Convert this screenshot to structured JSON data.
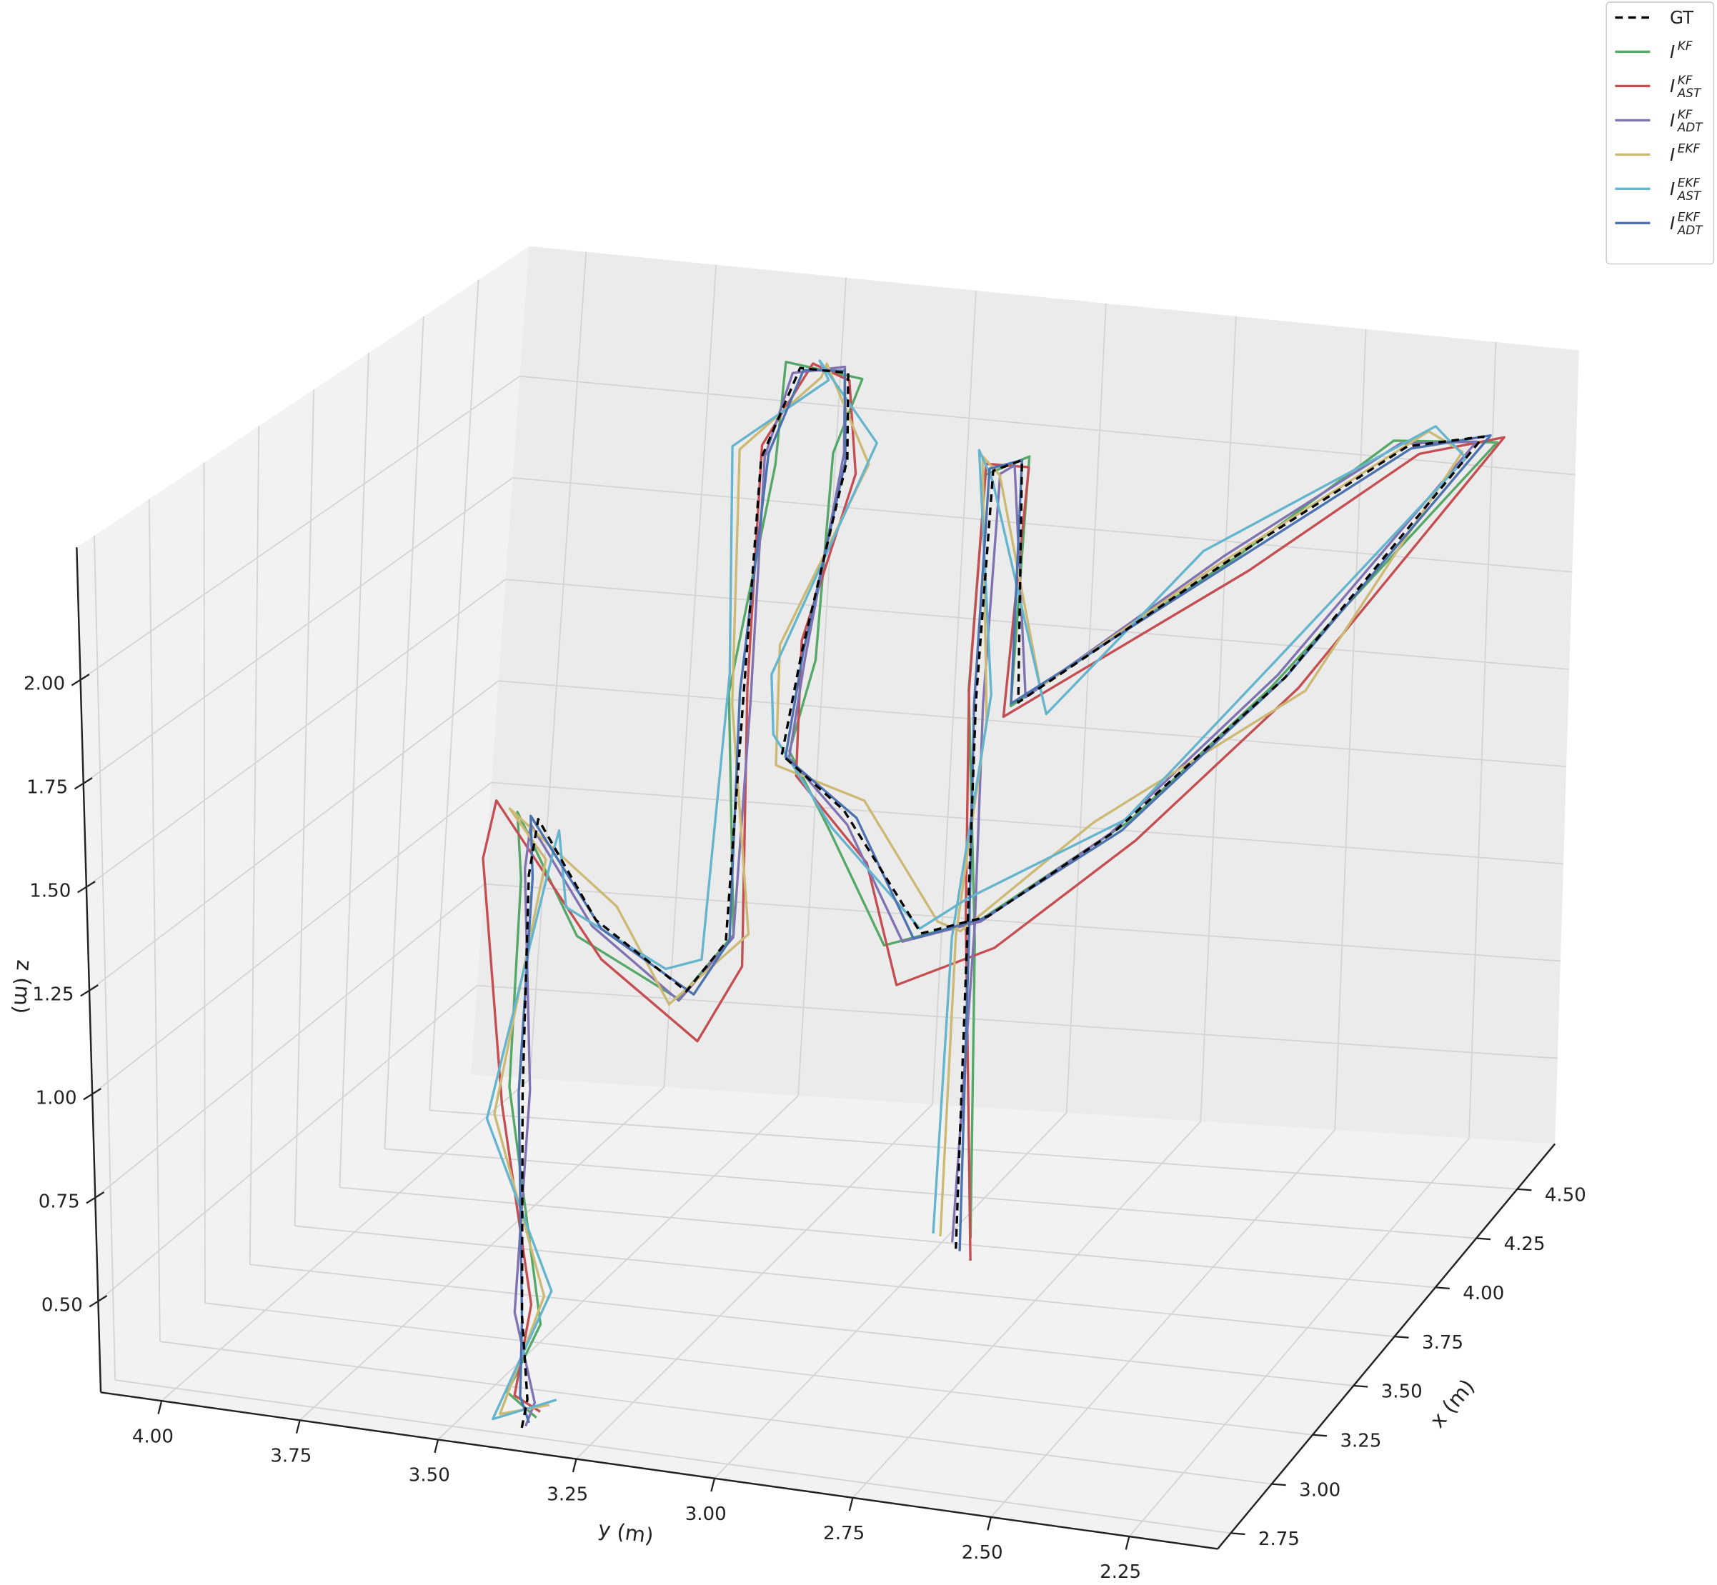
{
  "chart_data": {
    "type": "line3d",
    "xlabel": "x (m)",
    "ylabel": "y (m)",
    "zlabel": "z (m)",
    "xlim": [
      2.67,
      4.73
    ],
    "ylim": [
      4.11,
      2.09
    ],
    "zlim": [
      0.28,
      2.32
    ],
    "xticks": [
      2.75,
      {
        "value": 3.0,
        "label": "3.00"
      },
      3.25,
      {
        "value": 3.5,
        "label": "3.50"
      },
      3.75,
      {
        "value": 4.0,
        "label": "4.00"
      },
      4.25,
      {
        "value": 4.5,
        "label": "4.50"
      }
    ],
    "yticks": [
      {
        "value": 4.0,
        "label": "4.00"
      },
      3.75,
      {
        "value": 3.5,
        "label": "3.50"
      },
      3.25,
      {
        "value": 3.0,
        "label": "3.00"
      },
      2.75,
      {
        "value": 2.5,
        "label": "2.50"
      },
      2.25
    ],
    "zticks": [
      {
        "value": 0.5,
        "label": "0.50"
      },
      0.75,
      {
        "value": 1.0,
        "label": "1.00"
      },
      1.25,
      {
        "value": 1.5,
        "label": "1.50"
      },
      1.75,
      {
        "value": 2.0,
        "label": "2.00"
      }
    ],
    "grid": true,
    "legend": "upper right",
    "series": [
      {
        "name": "GT",
        "color": "#000000",
        "linestyle": "dashed",
        "x": [
          2.77,
          2.77,
          2.77,
          2.77,
          2.77,
          2.88,
          2.98,
          3.08,
          3.39,
          3.91,
          4.22,
          4.32,
          4.32,
          4.22,
          4.01,
          3.8,
          3.6,
          3.49,
          3.49,
          3.6,
          3.8,
          4.22,
          4.32,
          4.22,
          4.11,
          4.11,
          4.01,
          3.8,
          3.6,
          3.39
        ],
        "y": [
          3.38,
          3.37,
          3.38,
          3.38,
          3.37,
          3.39,
          3.32,
          3.19,
          3.22,
          3.37,
          3.46,
          3.43,
          3.34,
          3.3,
          3.3,
          3.26,
          3.08,
          2.9,
          2.78,
          2.59,
          2.35,
          2.12,
          2.29,
          2.58,
          2.93,
          2.94,
          2.96,
          2.91,
          2.85,
          2.79
        ],
        "z": [
          0.29,
          0.36,
          0.56,
          1.09,
          1.62,
          1.71,
          1.44,
          1.25,
          1.24,
          1.61,
          2.07,
          2.26,
          2.26,
          2.09,
          1.69,
          1.53,
          1.5,
          1.27,
          1.33,
          1.52,
          1.85,
          2.31,
          2.22,
          1.94,
          1.58,
          2.18,
          2.19,
          1.71,
          1.24,
          0.56
        ]
      },
      {
        "name": "I",
        "name_sup": "KF",
        "color": "#55a868",
        "linestyle": "solid",
        "x": [
          2.79,
          2.75,
          2.78,
          2.76,
          2.79,
          2.86,
          2.97,
          3.1,
          3.37,
          3.89,
          4.24,
          4.3,
          4.34,
          4.2,
          4.03,
          3.78,
          3.58,
          3.47,
          3.51,
          3.62,
          3.78,
          4.24,
          4.3,
          4.2,
          4.13,
          4.09,
          4.03,
          3.82,
          3.58,
          3.41
        ],
        "y": [
          3.36,
          3.4,
          3.35,
          3.4,
          3.39,
          3.42,
          3.35,
          3.21,
          3.2,
          3.39,
          3.44,
          3.45,
          3.32,
          3.32,
          3.28,
          3.24,
          3.1,
          2.96,
          2.8,
          2.57,
          2.37,
          2.1,
          2.31,
          2.56,
          2.95,
          2.92,
          2.98,
          2.93,
          2.83,
          2.77
        ],
        "z": [
          0.31,
          0.38,
          0.54,
          1.11,
          1.6,
          1.73,
          1.4,
          1.22,
          1.27,
          1.63,
          2.05,
          2.28,
          2.24,
          2.11,
          1.67,
          1.55,
          1.46,
          1.24,
          1.31,
          1.54,
          1.83,
          2.29,
          2.24,
          1.96,
          1.56,
          2.2,
          2.17,
          1.73,
          1.22,
          0.58
        ]
      },
      {
        "name": "I",
        "name_sup": "KF",
        "name_sub": "AST",
        "color": "#c44e52",
        "linestyle": "solid",
        "x": [
          2.78,
          2.76,
          2.79,
          2.75,
          2.74,
          2.84,
          2.95,
          3.02,
          3.36,
          3.9,
          4.25,
          4.33,
          4.3,
          4.21,
          4.04,
          3.76,
          3.55,
          3.42,
          3.5,
          3.63,
          3.82,
          4.25,
          4.33,
          4.23,
          4.09,
          4.12,
          4.0,
          3.79,
          3.62,
          3.38
        ],
        "y": [
          3.35,
          3.39,
          3.37,
          3.41,
          3.44,
          3.45,
          3.3,
          3.15,
          3.18,
          3.36,
          3.47,
          3.41,
          3.33,
          3.28,
          3.31,
          3.22,
          3.02,
          2.92,
          2.77,
          2.56,
          2.33,
          2.09,
          2.27,
          2.55,
          2.95,
          2.93,
          2.97,
          2.92,
          2.86,
          2.76
        ],
        "z": [
          0.33,
          0.37,
          0.58,
          1.07,
          1.66,
          1.76,
          1.36,
          1.16,
          1.2,
          1.64,
          2.09,
          2.27,
          2.25,
          2.06,
          1.71,
          1.5,
          1.4,
          1.17,
          1.25,
          1.49,
          1.82,
          2.3,
          2.2,
          1.91,
          1.55,
          2.16,
          2.21,
          1.74,
          1.27,
          0.54
        ]
      },
      {
        "name": "I",
        "name_sup": "KF",
        "name_sub": "ADT",
        "color": "#8172b2",
        "linestyle": "solid",
        "x": [
          2.76,
          2.78,
          2.76,
          2.78,
          2.78,
          2.87,
          2.99,
          3.07,
          3.4,
          3.92,
          4.21,
          4.31,
          4.33,
          4.23,
          4.0,
          3.81,
          3.59,
          3.48,
          3.48,
          3.61,
          3.79,
          4.21,
          4.31,
          4.21,
          4.12,
          4.1,
          4.02,
          3.81,
          3.61,
          3.4
        ],
        "y": [
          3.37,
          3.36,
          3.39,
          3.37,
          3.38,
          3.4,
          3.33,
          3.2,
          3.21,
          3.36,
          3.45,
          3.44,
          3.35,
          3.31,
          3.29,
          3.25,
          3.07,
          2.93,
          2.79,
          2.6,
          2.36,
          2.13,
          2.3,
          2.59,
          2.92,
          2.95,
          2.95,
          2.9,
          2.84,
          2.8
        ],
        "z": [
          0.3,
          0.35,
          0.57,
          1.1,
          1.63,
          1.7,
          1.42,
          1.23,
          1.25,
          1.6,
          2.08,
          2.25,
          2.27,
          2.1,
          1.68,
          1.52,
          1.47,
          1.25,
          1.32,
          1.51,
          1.86,
          2.3,
          2.23,
          1.95,
          1.59,
          2.17,
          2.18,
          1.7,
          1.25,
          0.57
        ]
      },
      {
        "name": "I",
        "name_sup": "EKF",
        "color": "#ccb974",
        "linestyle": "solid",
        "x": [
          2.8,
          2.74,
          2.8,
          2.74,
          2.8,
          2.85,
          3.0,
          3.11,
          3.36,
          3.94,
          4.19,
          4.35,
          4.29,
          4.25,
          3.98,
          3.83,
          3.62,
          3.52,
          3.46,
          3.57,
          3.83,
          4.19,
          4.35,
          4.19,
          4.14,
          4.08,
          4.04,
          3.77,
          3.63,
          3.36
        ],
        "y": [
          3.34,
          3.41,
          3.35,
          3.42,
          3.35,
          3.43,
          3.29,
          3.23,
          3.17,
          3.4,
          3.49,
          3.4,
          3.37,
          3.27,
          3.33,
          3.28,
          3.05,
          2.88,
          2.82,
          2.62,
          2.32,
          2.15,
          2.26,
          2.61,
          2.9,
          2.97,
          2.99,
          2.88,
          2.88,
          2.81
        ],
        "z": [
          0.34,
          0.33,
          0.6,
          1.05,
          1.65,
          1.74,
          1.47,
          1.2,
          1.28,
          1.58,
          2.1,
          2.23,
          2.29,
          2.07,
          1.72,
          1.49,
          1.52,
          1.29,
          1.3,
          1.55,
          1.81,
          2.28,
          2.25,
          1.92,
          1.61,
          2.15,
          2.21,
          1.68,
          1.21,
          0.6
        ]
      },
      {
        "name": "I",
        "name_sup": "EKF",
        "name_sub": "AST",
        "color": "#64b5cd",
        "linestyle": "solid",
        "x": [
          2.81,
          2.73,
          2.81,
          2.73,
          2.81,
          2.9,
          2.94,
          3.12,
          3.35,
          3.95,
          4.18,
          4.36,
          4.28,
          4.26,
          3.97,
          3.84,
          3.63,
          3.45,
          3.53,
          3.56,
          3.84,
          4.18,
          4.36,
          4.18,
          4.15,
          4.07,
          4.05,
          3.76,
          3.64,
          3.35
        ],
        "y": [
          3.33,
          3.42,
          3.34,
          3.43,
          3.34,
          3.36,
          3.36,
          3.24,
          3.25,
          3.41,
          3.5,
          3.39,
          3.38,
          3.26,
          3.34,
          3.29,
          3.11,
          2.89,
          2.83,
          2.56,
          2.38,
          2.14,
          2.25,
          2.62,
          2.89,
          2.98,
          3.0,
          2.87,
          2.89,
          2.82
        ],
        "z": [
          0.35,
          0.32,
          0.61,
          1.04,
          1.67,
          1.68,
          1.48,
          1.28,
          1.21,
          1.65,
          2.11,
          2.22,
          2.3,
          2.12,
          1.65,
          1.56,
          1.44,
          1.3,
          1.35,
          1.57,
          1.87,
          2.27,
          2.26,
          1.97,
          1.54,
          2.14,
          2.22,
          1.75,
          1.2,
          0.61
        ]
      },
      {
        "name": "I",
        "name_sup": "EKF",
        "name_sub": "ADT",
        "color": "#4c72b0",
        "linestyle": "solid",
        "x": [
          2.78,
          2.76,
          2.77,
          2.78,
          2.76,
          2.87,
          2.98,
          3.09,
          3.38,
          3.92,
          4.23,
          4.31,
          4.33,
          4.21,
          4.02,
          3.79,
          3.61,
          3.48,
          3.5,
          3.61,
          3.81,
          4.23,
          4.31,
          4.21,
          4.1,
          4.11,
          4.02,
          3.79,
          3.61,
          3.38
        ],
        "y": [
          3.37,
          3.38,
          3.38,
          3.39,
          3.36,
          3.4,
          3.31,
          3.18,
          3.21,
          3.38,
          3.45,
          3.42,
          3.35,
          3.3,
          3.3,
          3.25,
          3.06,
          2.91,
          2.79,
          2.58,
          2.35,
          2.11,
          2.28,
          2.57,
          2.94,
          2.94,
          2.97,
          2.91,
          2.85,
          2.78
        ],
        "z": [
          0.3,
          0.37,
          0.55,
          1.09,
          1.62,
          1.72,
          1.42,
          1.24,
          1.25,
          1.62,
          2.08,
          2.26,
          2.26,
          2.09,
          1.69,
          1.53,
          1.48,
          1.26,
          1.32,
          1.52,
          1.85,
          2.31,
          2.22,
          1.94,
          1.58,
          2.18,
          2.19,
          1.71,
          1.24,
          0.56
        ]
      }
    ]
  }
}
